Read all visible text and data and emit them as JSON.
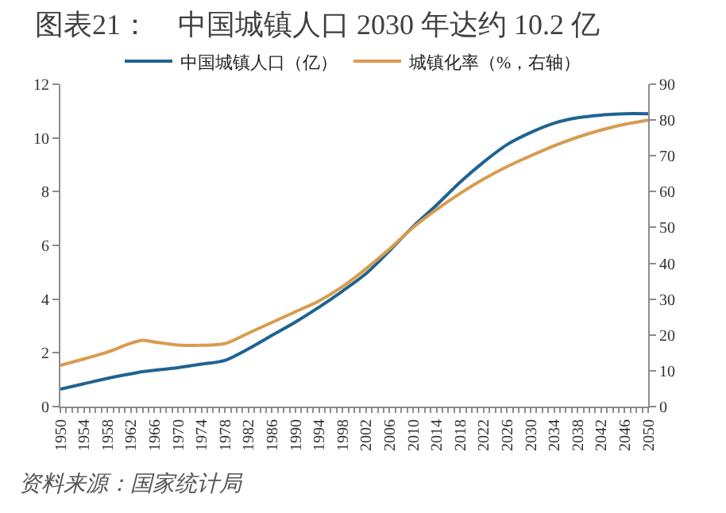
{
  "chart_data": {
    "type": "line",
    "title": "图表21：    中国城镇人口 2030 年达约 10.2 亿",
    "x": [
      1950,
      1954,
      1958,
      1962,
      1964,
      1966,
      1970,
      1974,
      1978,
      1982,
      1986,
      1990,
      1994,
      1998,
      2002,
      2006,
      2010,
      2014,
      2018,
      2022,
      2026,
      2030,
      2034,
      2038,
      2042,
      2046,
      2050
    ],
    "series": [
      {
        "name": "中国城镇人口（亿）",
        "color": "#1f6391",
        "values": [
          0.65,
          0.85,
          1.05,
          1.22,
          1.3,
          1.35,
          1.45,
          1.58,
          1.72,
          2.15,
          2.65,
          3.15,
          3.7,
          4.3,
          4.95,
          5.8,
          6.7,
          7.5,
          8.35,
          9.1,
          9.75,
          10.2,
          10.55,
          10.75,
          10.85,
          10.9,
          10.9
        ]
      },
      {
        "name": "城镇化率（%，右轴）",
        "color": "#d89b4f",
        "axis": "y2",
        "values": [
          11.5,
          13.3,
          15.2,
          17.7,
          18.5,
          18.0,
          17.2,
          17.1,
          17.6,
          20.5,
          23.5,
          26.5,
          29.5,
          33.5,
          38.5,
          44,
          50,
          55,
          59.5,
          63.5,
          67,
          70,
          72.8,
          75.2,
          77.2,
          78.8,
          80
        ]
      }
    ],
    "xlim": [
      1950,
      2050
    ],
    "xticks": [
      1950,
      {
        "value": 1951,
        "label": null
      },
      {
        "value": 1952,
        "label": null
      },
      {
        "value": 1953,
        "label": null
      },
      1954,
      {
        "value": 1955,
        "label": null
      },
      {
        "value": 1956,
        "label": null
      },
      {
        "value": 1957,
        "label": null
      },
      1958,
      {
        "value": 1959,
        "label": null
      },
      {
        "value": 1960,
        "label": null
      },
      {
        "value": 1961,
        "label": null
      },
      1962,
      {
        "value": 1963,
        "label": null
      },
      {
        "value": 1964,
        "label": null
      },
      {
        "value": 1965,
        "label": null
      },
      1966,
      {
        "value": 1967,
        "label": null
      },
      {
        "value": 1968,
        "label": null
      },
      {
        "value": 1969,
        "label": null
      },
      1970,
      {
        "value": 1971,
        "label": null
      },
      {
        "value": 1972,
        "label": null
      },
      {
        "value": 1973,
        "label": null
      },
      1974,
      {
        "value": 1975,
        "label": null
      },
      {
        "value": 1976,
        "label": null
      },
      {
        "value": 1977,
        "label": null
      },
      1978,
      {
        "value": 1979,
        "label": null
      },
      {
        "value": 1980,
        "label": null
      },
      {
        "value": 1981,
        "label": null
      },
      1982,
      {
        "value": 1983,
        "label": null
      },
      {
        "value": 1984,
        "label": null
      },
      {
        "value": 1985,
        "label": null
      },
      1986,
      {
        "value": 1987,
        "label": null
      },
      {
        "value": 1988,
        "label": null
      },
      {
        "value": 1989,
        "label": null
      },
      1990,
      {
        "value": 1991,
        "label": null
      },
      {
        "value": 1992,
        "label": null
      },
      {
        "value": 1993,
        "label": null
      },
      1994,
      {
        "value": 1995,
        "label": null
      },
      {
        "value": 1996,
        "label": null
      },
      {
        "value": 1997,
        "label": null
      },
      1998,
      {
        "value": 1999,
        "label": null
      },
      {
        "value": 2000,
        "label": null
      },
      {
        "value": 2001,
        "label": null
      },
      2002,
      {
        "value": 2003,
        "label": null
      },
      {
        "value": 2004,
        "label": null
      },
      {
        "value": 2005,
        "label": null
      },
      2006,
      {
        "value": 2007,
        "label": null
      },
      {
        "value": 2008,
        "label": null
      },
      {
        "value": 2009,
        "label": null
      },
      2010,
      {
        "value": 2011,
        "label": null
      },
      {
        "value": 2012,
        "label": null
      },
      {
        "value": 2013,
        "label": null
      },
      2014,
      {
        "value": 2015,
        "label": null
      },
      {
        "value": 2016,
        "label": null
      },
      {
        "value": 2017,
        "label": null
      },
      2018,
      {
        "value": 2019,
        "label": null
      },
      {
        "value": 2020,
        "label": null
      },
      {
        "value": 2021,
        "label": null
      },
      2022,
      {
        "value": 2023,
        "label": null
      },
      {
        "value": 2024,
        "label": null
      },
      {
        "value": 2025,
        "label": null
      },
      2026,
      {
        "value": 2027,
        "label": null
      },
      {
        "value": 2028,
        "label": null
      },
      {
        "value": 2029,
        "label": null
      },
      2030,
      {
        "value": 2031,
        "label": null
      },
      {
        "value": 2032,
        "label": null
      },
      {
        "value": 2033,
        "label": null
      },
      2034,
      {
        "value": 2035,
        "label": null
      },
      {
        "value": 2036,
        "label": null
      },
      {
        "value": 2037,
        "label": null
      },
      2038,
      {
        "value": 2039,
        "label": null
      },
      {
        "value": 2040,
        "label": null
      },
      {
        "value": 2041,
        "label": null
      },
      2042,
      {
        "value": 2043,
        "label": null
      },
      {
        "value": 2044,
        "label": null
      },
      {
        "value": 2045,
        "label": null
      },
      2046,
      {
        "value": 2047,
        "label": null
      },
      {
        "value": 2048,
        "label": null
      },
      {
        "value": 2049,
        "label": null
      },
      2050
    ],
    "ylim": [
      0,
      12
    ],
    "yticks": [
      0,
      2,
      4,
      6,
      8,
      10,
      12
    ],
    "y2lim": [
      0,
      90
    ],
    "y2ticks": [
      0,
      10,
      20,
      30,
      40,
      50,
      60,
      70,
      80,
      90
    ],
    "legend": "top",
    "annotations": [
      "资料来源：国家统计局"
    ]
  }
}
